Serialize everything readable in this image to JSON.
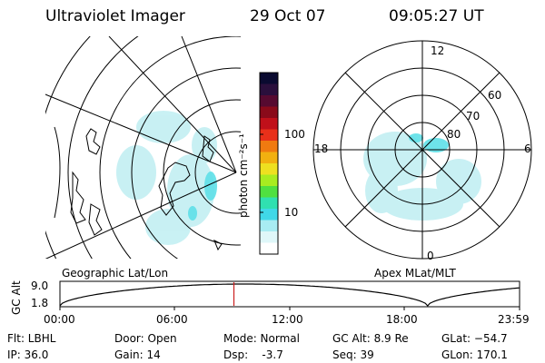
{
  "header": {
    "instrument": "Ultraviolet Imager",
    "date": "29 Oct 07",
    "time": "09:05:27 UT"
  },
  "colorbar": {
    "unit_label": "photon cm⁻²s⁻¹",
    "ticks": [
      "100",
      "10"
    ],
    "colors": [
      "#0a0a30",
      "#2a0f3c",
      "#560a30",
      "#8a0a1a",
      "#c0101a",
      "#e8301a",
      "#f07a10",
      "#f2b010",
      "#eee020",
      "#a8ec20",
      "#50e040",
      "#30e0b0",
      "#40d8e8",
      "#a8ecf2",
      "#dff7f9",
      "#ffffff"
    ]
  },
  "left_map": {
    "label": "Geographic Lat/Lon"
  },
  "right_map": {
    "label": "Apex MLat/MLT",
    "mlt_labels": {
      "top": "12",
      "left": "18",
      "right": "6",
      "bottom": "0"
    },
    "lat_labels": [
      "60",
      "70",
      "80"
    ]
  },
  "gc_plot": {
    "ylabel": "GC Alt",
    "yticks": [
      "9.0",
      "1.8"
    ],
    "xticks": [
      "00:00",
      "06:00",
      "12:00",
      "18:00",
      "23:59"
    ],
    "current_time_marker": "09:05",
    "marker_color": "#cc2020"
  },
  "info": {
    "filter": "Flt: LBHL",
    "ip": "IP: 36.0",
    "door": "Door: Open",
    "gain": "Gain: 14",
    "mode": "Mode: Normal",
    "dsp": "Dsp:    -3.7",
    "gc_alt": "GC Alt: 8.9 Re",
    "seq": "Seq: 39",
    "glat": "GLat: −54.7",
    "glon": "GLon: 170.1"
  }
}
